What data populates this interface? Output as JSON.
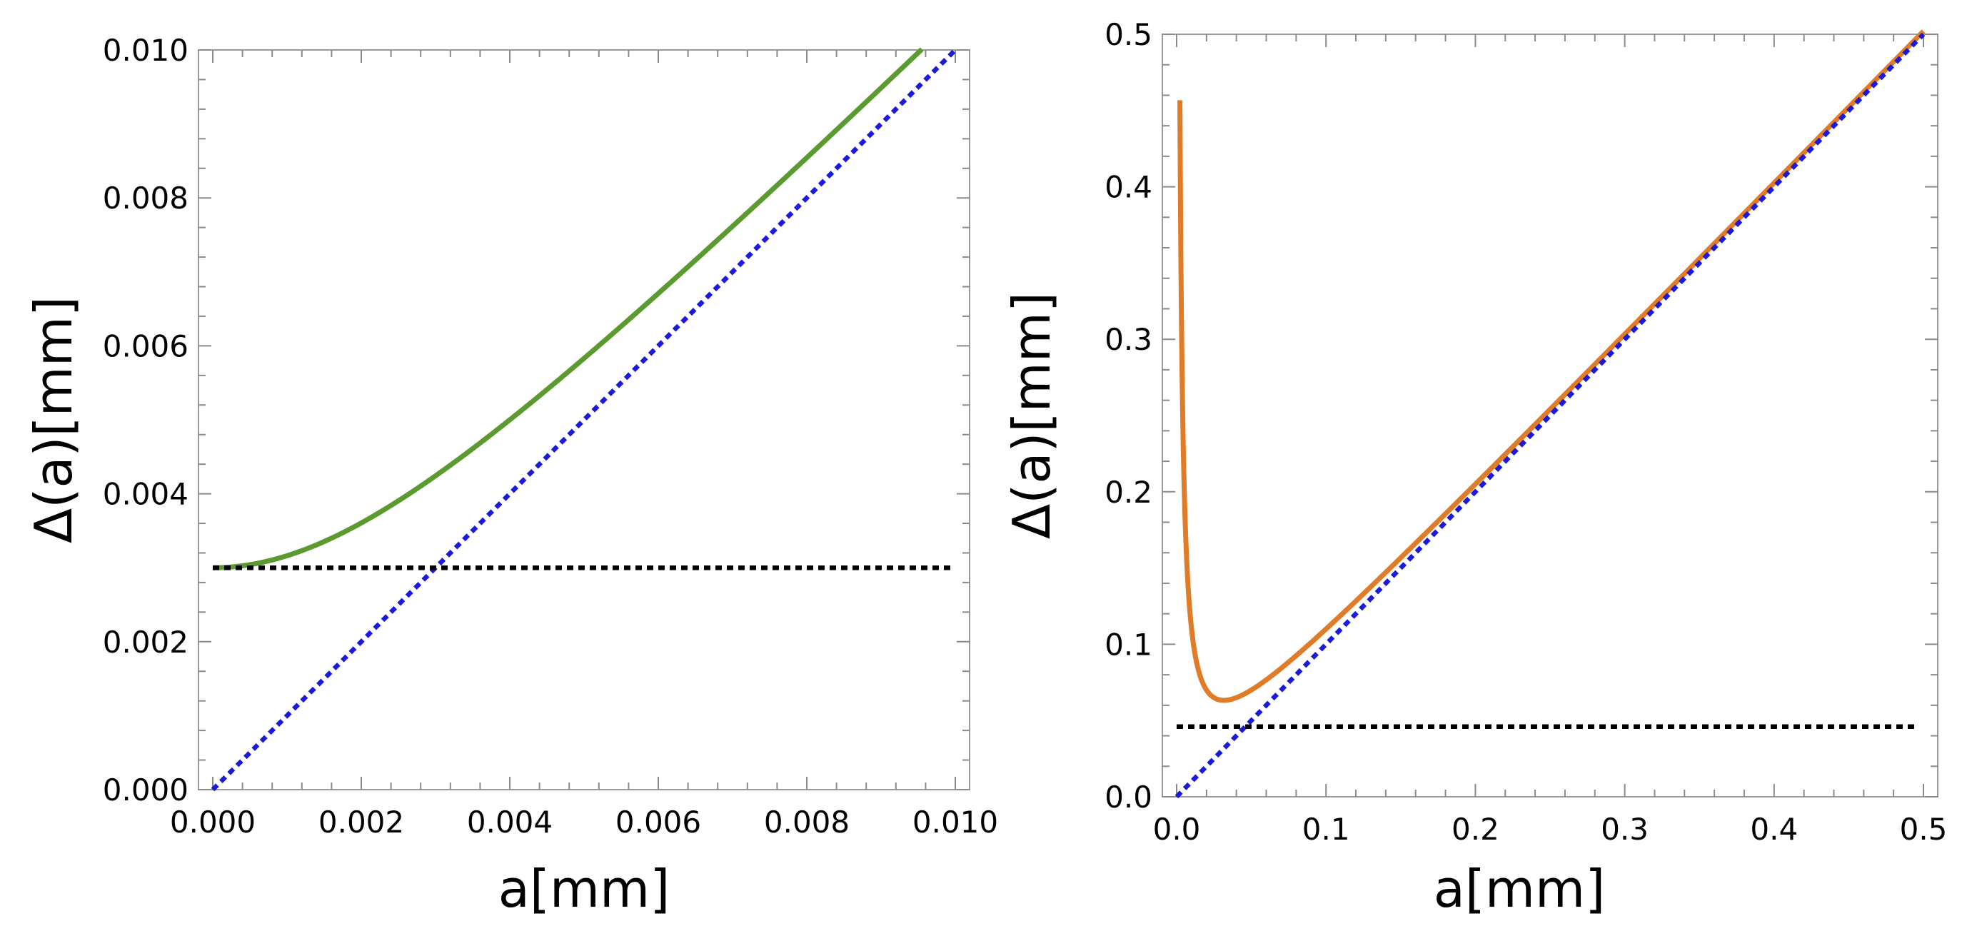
{
  "chart_data": [
    {
      "type": "line",
      "xlabel": "a[mm]",
      "ylabel": "Δ(a)[mm]",
      "xlim": [
        0,
        0.01
      ],
      "ylim": [
        0,
        0.01
      ],
      "xticks": [
        "0.000",
        "0.002",
        "0.004",
        "0.006",
        "0.008",
        "0.010"
      ],
      "yticks": [
        "0.000",
        "0.002",
        "0.004",
        "0.006",
        "0.008",
        "0.010"
      ],
      "x_tick_values": [
        0,
        0.002,
        0.004,
        0.006,
        0.008,
        0.01
      ],
      "y_tick_values": [
        0,
        0.002,
        0.004,
        0.006,
        0.008,
        0.01
      ],
      "series": [
        {
          "name": "Delta(a)",
          "style": "solid",
          "color": "#5a9a2e",
          "formula": "sqrt",
          "delta0": 0.003,
          "x_start": 0,
          "x_end": 0.00955
        },
        {
          "name": "a",
          "style": "dotted",
          "color": "#1a1adc",
          "formula": "identity",
          "x_start": 0,
          "x_end": 0.01
        },
        {
          "name": "Delta_min",
          "style": "dotted",
          "color": "#000000",
          "formula": "constant",
          "value": 0.003,
          "x_start": 0,
          "x_end": 0.01
        }
      ]
    },
    {
      "type": "line",
      "xlabel": "a[mm]",
      "ylabel": "Δ(a)[mm]",
      "xlim": [
        0,
        0.5
      ],
      "ylim": [
        0,
        0.5
      ],
      "xticks": [
        "0.0",
        "0.1",
        "0.2",
        "0.3",
        "0.4",
        "0.5"
      ],
      "yticks": [
        "0.0",
        "0.1",
        "0.2",
        "0.3",
        "0.4",
        "0.5"
      ],
      "x_tick_values": [
        0,
        0.1,
        0.2,
        0.3,
        0.4,
        0.5
      ],
      "y_tick_values": [
        0,
        0.1,
        0.2,
        0.3,
        0.4,
        0.5
      ],
      "series": [
        {
          "name": "Delta(a)",
          "style": "solid",
          "color": "#e07b28",
          "formula": "diffraction",
          "c": 0.001,
          "x_start": 0.0022,
          "x_end": 0.5
        },
        {
          "name": "a",
          "style": "dotted",
          "color": "#1a1adc",
          "formula": "identity",
          "x_start": 0,
          "x_end": 0.5
        },
        {
          "name": "Delta_min",
          "style": "dotted",
          "color": "#000000",
          "formula": "constant",
          "value": 0.046,
          "x_start": 0.0,
          "x_end": 0.497
        }
      ]
    }
  ]
}
